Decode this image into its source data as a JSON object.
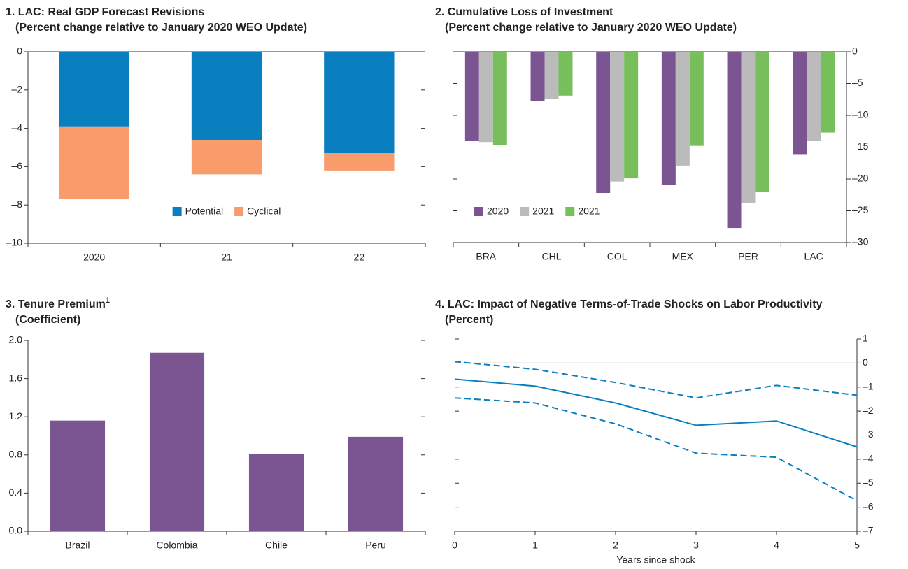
{
  "chart_data": [
    {
      "type": "bar",
      "stacked": true,
      "title": "1. LAC: Real GDP Forecast Revisions",
      "subtitle": "(Percent change relative to January 2020 WEO Update)",
      "categories": [
        "2020",
        "21",
        "22"
      ],
      "series": [
        {
          "name": "Potential",
          "color": "#0a7fbf",
          "values": [
            -3.9,
            -4.6,
            -5.3
          ]
        },
        {
          "name": "Cyclical",
          "color": "#f99b6a",
          "values": [
            -3.8,
            -1.8,
            -0.9
          ]
        }
      ],
      "ylim": [
        -10,
        0
      ],
      "yticks": [
        0,
        {
          "value": -2,
          "label": "–2"
        },
        {
          "value": -4,
          "label": "–4"
        },
        {
          "value": -6,
          "label": "–6"
        },
        {
          "value": -8,
          "label": "–8"
        },
        {
          "value": -10,
          "label": "–10"
        }
      ],
      "yaxis_position": "left",
      "legend": "lower center"
    },
    {
      "type": "bar",
      "stacked": false,
      "title": "2. Cumulative Loss of Investment",
      "subtitle": "(Percent change relative to January 2020 WEO Update)",
      "categories": [
        "BRA",
        "CHL",
        "COL",
        "MEX",
        "PER",
        "LAC"
      ],
      "series": [
        {
          "name": "2020",
          "color": "#7b5592",
          "values": [
            -14.0,
            -7.8,
            -22.2,
            -20.9,
            -27.7,
            -16.2
          ]
        },
        {
          "name": "2021",
          "color": "#bbbbbb",
          "values": [
            -14.2,
            -7.4,
            -20.4,
            -17.9,
            -23.8,
            -14.0
          ]
        },
        {
          "name": "2021",
          "color": "#77bf5a",
          "values": [
            -14.7,
            -6.9,
            -19.9,
            -14.8,
            -22.0,
            -12.7
          ]
        }
      ],
      "ylim": [
        -30,
        0
      ],
      "yticks": [
        0,
        {
          "value": -5,
          "label": "–5"
        },
        {
          "value": -10,
          "label": "–10"
        },
        {
          "value": -15,
          "label": "–15"
        },
        {
          "value": -20,
          "label": "–20"
        },
        {
          "value": -25,
          "label": "–25"
        },
        {
          "value": -30,
          "label": "–30"
        }
      ],
      "yaxis_position": "right",
      "legend": "lower left"
    },
    {
      "type": "bar",
      "stacked": false,
      "title": "3. Tenure Premium",
      "title_note": "1",
      "subtitle": "(Coefficient)",
      "categories": [
        "Brazil",
        "Colombia",
        "Chile",
        "Peru"
      ],
      "series": [
        {
          "color": "#7b5592",
          "values": [
            1.16,
            1.87,
            0.81,
            0.99
          ]
        }
      ],
      "ylim": [
        0,
        2
      ],
      "yticks": [
        {
          "value": 0,
          "label": "0.0"
        },
        0.4,
        0.8,
        1.2,
        1.6,
        {
          "value": 2,
          "label": "2.0"
        }
      ],
      "yaxis_position": "left"
    },
    {
      "type": "line",
      "title": "4. LAC: Impact of Negative Terms-of-Trade Shocks on Labor Productivity",
      "subtitle": "(Percent)",
      "x_label": "Years since shock",
      "x": [
        0,
        1,
        2,
        3,
        4,
        5
      ],
      "xlim": [
        0,
        5
      ],
      "xticks": [
        0,
        1,
        2,
        3,
        4,
        5
      ],
      "series": [
        {
          "color": "#0a7fbf",
          "line_style": "solid",
          "values": [
            -0.67,
            -0.96,
            -1.66,
            -2.59,
            -2.41,
            -3.49
          ]
        },
        {
          "color": "#0a7fbf",
          "line_style": "dashed",
          "values": [
            0.06,
            -0.26,
            -0.81,
            -1.45,
            -0.93,
            -1.34
          ]
        },
        {
          "color": "#0a7fbf",
          "line_style": "dashed",
          "values": [
            -1.45,
            -1.66,
            -2.53,
            -3.75,
            -3.92,
            -5.73
          ]
        }
      ],
      "ylim": [
        -7,
        1
      ],
      "yticks": [
        1,
        0,
        {
          "value": -1,
          "label": "–1"
        },
        {
          "value": -2,
          "label": "–2"
        },
        {
          "value": -3,
          "label": "–3"
        },
        {
          "value": -4,
          "label": "–4"
        },
        {
          "value": -5,
          "label": "–5"
        },
        {
          "value": -6,
          "label": "–6"
        },
        {
          "value": -7,
          "label": "–7"
        }
      ],
      "yaxis_position": "right"
    }
  ]
}
